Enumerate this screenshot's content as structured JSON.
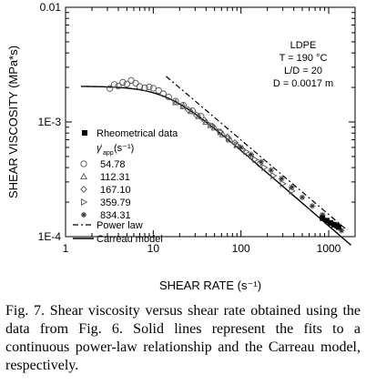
{
  "chart_data": {
    "type": "scatter",
    "xscale": "log",
    "yscale": "log",
    "xlim": [
      1,
      2000
    ],
    "ylim": [
      0.0001,
      0.01
    ],
    "xlabel": "SHEAR RATE (s⁻¹)",
    "ylabel": "SHEAR VISCOSITY (MPa*s)",
    "x_ticks": [
      {
        "value": 1,
        "label": "1"
      },
      {
        "value": 10,
        "label": "10"
      },
      {
        "value": 100,
        "label": "100"
      },
      {
        "value": 1000,
        "label": "1000"
      }
    ],
    "y_ticks": [
      {
        "value": 0.0001,
        "label": "1E-4"
      },
      {
        "value": 0.001,
        "label": "1E-3"
      },
      {
        "value": 0.01,
        "label": "0.01"
      }
    ],
    "info_box": [
      "LDPE",
      "T = 190 °C",
      "L/D = 20",
      "D = 0.0017 m"
    ],
    "legend": {
      "rheometrical": "Rheometrical data",
      "gamma_title": "γ̇",
      "gamma_sub": "app",
      "gamma_unit": "(s⁻¹)",
      "entries": [
        {
          "marker": "circle",
          "label": "54.78"
        },
        {
          "marker": "triangle-up",
          "label": "112.31"
        },
        {
          "marker": "diamond",
          "label": "167.10"
        },
        {
          "marker": "triangle-right",
          "label": "359.79"
        },
        {
          "marker": "star",
          "label": "834.31"
        }
      ],
      "power_law": "Power law",
      "carreau": "Carreau model"
    },
    "rheometrical_data": {
      "x": [
        850,
        950,
        1050,
        1150,
        1250,
        1300
      ],
      "y": [
        0.000145,
        0.000138,
        0.000132,
        0.000127,
        0.000124,
        0.000121
      ]
    },
    "series": [
      {
        "marker": "circle",
        "x": [
          3.2,
          3.6,
          4.0,
          4.5,
          5.0,
          5.6,
          6.3,
          7.0,
          8.0,
          9.0,
          10,
          11.5,
          13,
          15,
          18,
          22,
          28,
          35
        ],
        "y": [
          0.00196,
          0.00212,
          0.00205,
          0.00222,
          0.00214,
          0.0023,
          0.00218,
          0.00204,
          0.00199,
          0.00202,
          0.00197,
          0.00188,
          0.00176,
          0.00165,
          0.00152,
          0.0014,
          0.00125,
          0.00112
        ]
      },
      {
        "marker": "triangle-up",
        "x": [
          18,
          22,
          27,
          33,
          40,
          50,
          62,
          75,
          90
        ],
        "y": [
          0.00148,
          0.00137,
          0.00124,
          0.00112,
          0.001,
          0.00089,
          0.00078,
          0.0007,
          0.00063
        ]
      },
      {
        "marker": "diamond",
        "x": [
          25,
          31,
          38,
          47,
          58,
          70,
          85,
          105,
          130,
          160
        ],
        "y": [
          0.00128,
          0.00115,
          0.00104,
          0.00092,
          0.00082,
          0.00074,
          0.00066,
          0.00057,
          0.0005,
          0.00043
        ]
      },
      {
        "marker": "triangle-right",
        "x": [
          45,
          58,
          72,
          90,
          115,
          145,
          185,
          235,
          300,
          380
        ],
        "y": [
          0.00094,
          0.00082,
          0.00072,
          0.00063,
          0.00055,
          0.00047,
          0.0004,
          0.00034,
          0.00029,
          0.00025
        ]
      },
      {
        "marker": "star",
        "x": [
          100,
          130,
          170,
          220,
          290,
          380,
          500,
          650,
          850,
          1100,
          1400
        ],
        "y": [
          0.0006,
          0.00052,
          0.00045,
          0.00038,
          0.00032,
          0.00027,
          0.00022,
          0.000185,
          0.000155,
          0.00013,
          0.000113
        ]
      }
    ],
    "power_law_line": {
      "x": [
        14,
        1600
      ],
      "y": [
        0.0025,
        0.000115
      ]
    },
    "carreau_curve": {
      "eta0": 0.00205,
      "lambda": 0.07,
      "n": 0.34,
      "x_range": [
        1.5,
        1800
      ]
    },
    "caption": "Fig. 7. Shear viscosity versus shear rate obtained using the data from Fig. 6.  Solid lines represent the fits to a continuous power-law relationship and the Carreau model, respectively."
  }
}
